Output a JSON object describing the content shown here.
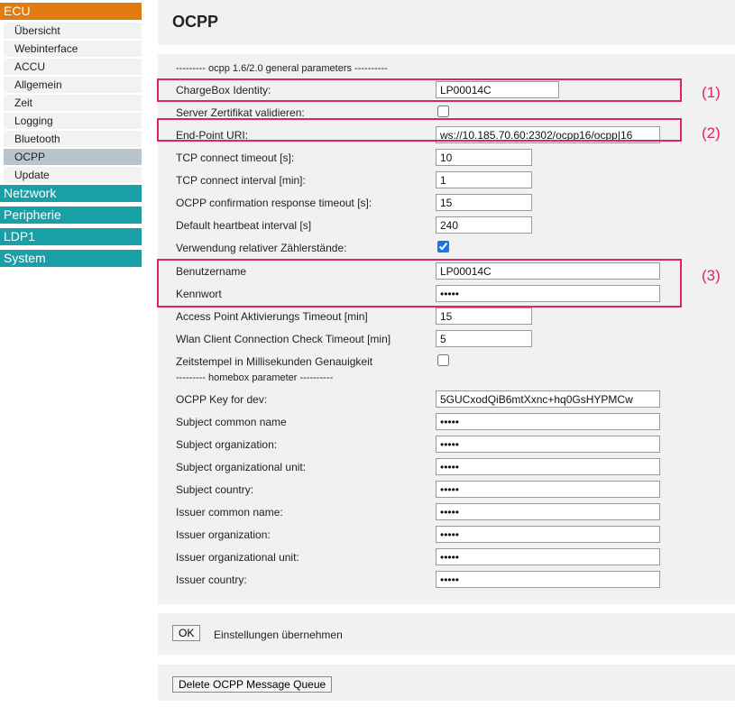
{
  "sidebar": {
    "ecu": "ECU",
    "items": [
      "Übersicht",
      "Webinterface",
      "ACCU",
      "Allgemein",
      "Zeit",
      "Logging",
      "Bluetooth",
      "OCPP",
      "Update"
    ],
    "active": "OCPP",
    "groups": [
      "Netzwork",
      "Peripherie",
      "LDP1",
      "System"
    ]
  },
  "page_title": "OCPP",
  "sections": {
    "general": "--------- ocpp 1.6/2.0 general parameters ----------",
    "homebox": "--------- homebox parameter ----------"
  },
  "fields": [
    {
      "label": "ChargeBox Identity:",
      "value": "LP00014C",
      "type": "text"
    },
    {
      "label": "Server Zertifikat validieren:",
      "checked": false,
      "type": "checkbox"
    },
    {
      "label": "End-Point URI:",
      "value": "ws://10.185.70.60:2302/ocpp16/ocpp|16",
      "type": "text"
    },
    {
      "label": "TCP connect timeout [s]:",
      "value": "10",
      "type": "text"
    },
    {
      "label": "TCP connect interval [min]:",
      "value": "1",
      "type": "text"
    },
    {
      "label": "OCPP confirmation response timeout [s]:",
      "value": "15",
      "type": "text"
    },
    {
      "label": "Default heartbeat interval [s]",
      "value": "240",
      "type": "text"
    },
    {
      "label": "Verwendung relativer Zählerstände:",
      "checked": true,
      "type": "checkbox"
    },
    {
      "label": "Benutzername",
      "value": "LP00014C",
      "type": "text"
    },
    {
      "label": "Kennwort",
      "value": "•••••",
      "type": "text"
    },
    {
      "label": "Access Point Aktivierungs Timeout [min]",
      "value": "15",
      "type": "text"
    },
    {
      "label": "Wlan Client Connection Check Timeout [min]",
      "value": "5",
      "type": "text"
    },
    {
      "label": "Zeitstempel in Millisekunden Genauigkeit",
      "checked": false,
      "type": "checkbox"
    }
  ],
  "homebox_fields": [
    {
      "label": "OCPP Key for dev:",
      "value": "5GUCxodQiB6mtXxnc+hq0GsHYPMCw"
    },
    {
      "label": "Subject common name",
      "value": "•••••"
    },
    {
      "label": "Subject organization:",
      "value": "•••••"
    },
    {
      "label": "Subject organizational unit:",
      "value": "•••••"
    },
    {
      "label": "Subject country:",
      "value": "•••••"
    },
    {
      "label": "Issuer common name:",
      "value": "•••••"
    },
    {
      "label": "Issuer organization:",
      "value": "•••••"
    },
    {
      "label": "Issuer organizational unit:",
      "value": "•••••"
    },
    {
      "label": "Issuer country:",
      "value": "•••••"
    }
  ],
  "annotations": [
    "(1)",
    "(2)",
    "(3)"
  ],
  "ok_button": "OK",
  "apply_label": "Einstellungen übernehmen",
  "delete_button": "Delete OCPP Message Queue",
  "colors": {
    "ecu": "#e07b12",
    "teal": "#1a9fa6",
    "highlight": "#e0245e",
    "active": "#b9c5cd"
  }
}
